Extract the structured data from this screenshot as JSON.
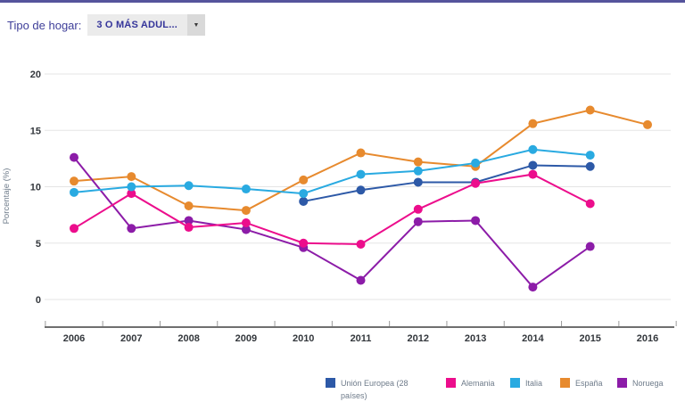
{
  "header": {
    "label": "Tipo de hogar:",
    "dropdown_value": "3 O MÁS ADUL...",
    "caret_icon": "▼"
  },
  "chart_data": {
    "type": "line",
    "title": "",
    "xlabel": "",
    "ylabel": "Porcentaje (%)",
    "ylim": [
      0,
      20
    ],
    "yticks": [
      0,
      5,
      10,
      15,
      20
    ],
    "grid": true,
    "legend_position": "bottom",
    "categories": [
      "2006",
      "2007",
      "2008",
      "2009",
      "2010",
      "2011",
      "2012",
      "2013",
      "2014",
      "2015",
      "2016"
    ],
    "series": [
      {
        "name": "Unión Europea (28 países)",
        "color": "#2d59a7",
        "values": [
          null,
          null,
          null,
          null,
          8.7,
          9.7,
          10.4,
          10.4,
          11.9,
          11.8,
          null
        ]
      },
      {
        "name": "Alemania",
        "color": "#ec0d8c",
        "values": [
          6.3,
          9.4,
          6.4,
          6.8,
          5.0,
          4.9,
          8.0,
          10.3,
          11.1,
          8.5,
          null
        ]
      },
      {
        "name": "Italia",
        "color": "#29aae1",
        "values": [
          9.5,
          10.0,
          10.1,
          9.8,
          9.4,
          11.1,
          11.4,
          12.1,
          13.3,
          12.8,
          null
        ]
      },
      {
        "name": "España",
        "color": "#e78a2e",
        "values": [
          10.5,
          10.9,
          8.3,
          7.9,
          10.6,
          13.0,
          12.2,
          11.8,
          15.6,
          16.8,
          15.5
        ]
      },
      {
        "name": "Noruega",
        "color": "#8c1ca8",
        "values": [
          12.6,
          6.3,
          7.0,
          6.2,
          4.6,
          1.7,
          6.9,
          7.0,
          1.1,
          4.7,
          null
        ]
      }
    ],
    "colors": {
      "gridline": "#e5e5e5",
      "axis_line": "#6f6f6f",
      "tick": "#9a9a9a",
      "tick_label": "#33373c",
      "axis_title": "#6e7b8a"
    }
  }
}
